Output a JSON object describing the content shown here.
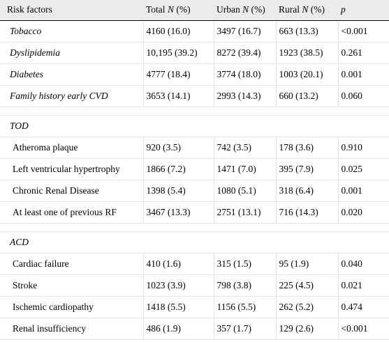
{
  "header": {
    "risk_factors": "Risk factors",
    "total": "Total",
    "urban": "Urban",
    "rural": "Rural",
    "n_pct_prefix": "N",
    "n_pct_suffix": " (%)",
    "p": "p"
  },
  "risk_rows": [
    {
      "label": "Tobacco",
      "total": "4160 (16.0)",
      "urban": "3497 (16.7)",
      "rural": "663 (13.3)",
      "p": "<0.001"
    },
    {
      "label": "Dyslipidemia",
      "total": "10,195 (39.2)",
      "urban": "8272 (39.4)",
      "rural": "1923 (38.5)",
      "p": "0.261"
    },
    {
      "label": "Diabetes",
      "total": "4777 (18.4)",
      "urban": "3774 (18.0)",
      "rural": "1003 (20.1)",
      "p": "0.001"
    },
    {
      "label": "Family history early CVD",
      "total": "3653 (14.1)",
      "urban": "2993 (14.3)",
      "rural": "660 (13.2)",
      "p": "0.060"
    }
  ],
  "tod": {
    "label": "TOD",
    "rows": [
      {
        "label": "Atheroma plaque",
        "total": "920 (3.5)",
        "urban": "742 (3.5)",
        "rural": "178 (3.6)",
        "p": "0.910"
      },
      {
        "label": "Left ventricular hypertrophy",
        "total": "1866 (7.2)",
        "urban": "1471 (7.0)",
        "rural": "395 (7.9)",
        "p": "0.025"
      },
      {
        "label": "Chronic Renal Disease",
        "total": "1398 (5.4)",
        "urban": "1080 (5.1)",
        "rural": "318 (6.4)",
        "p": "0.001"
      },
      {
        "label": "At least one of previous RF",
        "total": "3467 (13.3)",
        "urban": "2751 (13.1)",
        "rural": "716 (14.3)",
        "p": "0.020"
      }
    ]
  },
  "acd": {
    "label": "ACD",
    "rows": [
      {
        "label": "Cardiac failure",
        "total": "410 (1.6)",
        "urban": "315 (1.5)",
        "rural": "95 (1.9)",
        "p": "0.040"
      },
      {
        "label": "Stroke",
        "total": "1023 (3.9)",
        "urban": "798 (3.8)",
        "rural": "225 (4.5)",
        "p": "0.021"
      },
      {
        "label": "Ischemic cardiopathy",
        "total": "1418 (5.5)",
        "urban": "1156 (5.5)",
        "rural": "262 (5.2)",
        "p": "0.474"
      },
      {
        "label": "Renal insufficiency",
        "total": "486 (1.9)",
        "urban": "357 (1.7)",
        "rural": "129 (2.6)",
        "p": "<0.001"
      }
    ]
  }
}
